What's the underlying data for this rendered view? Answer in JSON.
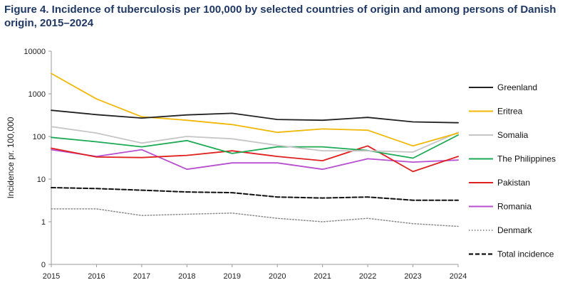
{
  "chart_data": {
    "type": "line",
    "title": "Figure 4. Incidence of tuberculosis per 100,000 by selected  countries of origin and among persons of Danish origin, 2015–2024",
    "xlabel": "",
    "ylabel": "Incidence pr. 100,000",
    "y_scale": "log",
    "ylim": [
      0.1,
      10000
    ],
    "y_ticks": [
      {
        "value": 10000,
        "label": "10000"
      },
      {
        "value": 1000,
        "label": "1000"
      },
      {
        "value": 100,
        "label": "100"
      },
      {
        "value": 10,
        "label": "10"
      },
      {
        "value": 1,
        "label": "1"
      },
      {
        "value": 0.1,
        "label": "0"
      }
    ],
    "grid": false,
    "legend_position": "right",
    "x": [
      "2015",
      "2016",
      "2017",
      "2018",
      "2019",
      "2020",
      "2021",
      "2022",
      "2023",
      "2024"
    ],
    "series": [
      {
        "name": "Greenland",
        "color": "#222222",
        "style": "solid",
        "values": [
          410,
          325,
          270,
          320,
          350,
          250,
          240,
          280,
          220,
          210
        ]
      },
      {
        "name": "Eritrea",
        "color": "#f2b705",
        "style": "solid",
        "values": [
          3000,
          760,
          290,
          240,
          190,
          125,
          150,
          140,
          60,
          120
        ]
      },
      {
        "name": "Somalia",
        "color": "#c6c6c6",
        "style": "solid",
        "values": [
          170,
          120,
          70,
          100,
          88,
          62,
          46,
          46,
          43,
          125
        ]
      },
      {
        "name": "The Philippines",
        "color": "#1daa55",
        "style": "solid",
        "values": [
          95,
          75,
          57,
          80,
          40,
          57,
          57,
          47,
          31,
          108
        ]
      },
      {
        "name": "Pakistan",
        "color": "#e0201e",
        "style": "solid",
        "values": [
          53,
          33,
          32,
          36,
          46,
          34,
          27,
          60,
          15,
          34
        ]
      },
      {
        "name": "Romania",
        "color": "#b84fd0",
        "style": "solid",
        "values": [
          49,
          34,
          49,
          17,
          24,
          24,
          17,
          30,
          25,
          28
        ]
      },
      {
        "name": "Denmark",
        "color": "#8a8a8a",
        "style": "dotted",
        "values": [
          2.0,
          2.0,
          1.4,
          1.5,
          1.6,
          1.2,
          1.0,
          1.2,
          0.9,
          0.78
        ]
      },
      {
        "name": "Total incidence",
        "color": "#111111",
        "style": "dashed",
        "values": [
          6.3,
          6.0,
          5.5,
          5.0,
          4.8,
          3.8,
          3.6,
          3.8,
          3.2,
          3.2
        ]
      }
    ]
  }
}
